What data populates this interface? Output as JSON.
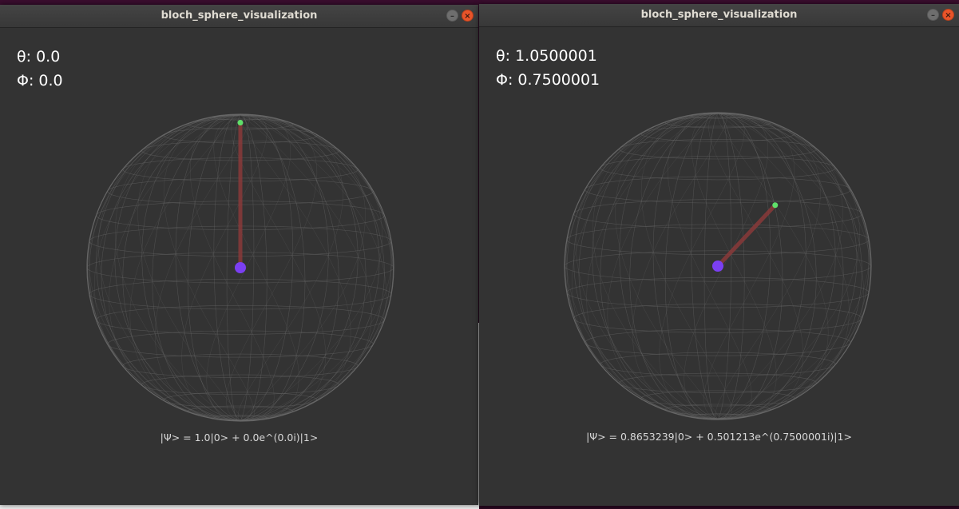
{
  "windows": [
    {
      "title": "bloch_sphere_visualization",
      "theta_label": "θ: 0.0",
      "phi_label": "Φ: 0.0",
      "state_equation": "|Ψ> = 1.0|0> + 0.0e^(0.0i)|1>",
      "theta": 0.0,
      "phi": 0.0
    },
    {
      "title": "bloch_sphere_visualization",
      "theta_label": "θ: 1.0500001",
      "phi_label": "Φ: 0.7500001",
      "state_equation": "|Ψ> = 0.8653239|0> + 0.501213e^(0.7500001i)|1>",
      "theta": 1.0500001,
      "phi": 0.7500001
    }
  ],
  "colors": {
    "background": "#333333",
    "wireframe": "#6a6a6a",
    "state_vector": "#8a3a3a",
    "tip_point": "#5fe06a",
    "origin_point": "#7b3ff2"
  },
  "icons": {
    "minimize": "minimize-icon",
    "close": "close-icon"
  },
  "button_glyphs": {
    "minimize": "–",
    "close": "×"
  }
}
